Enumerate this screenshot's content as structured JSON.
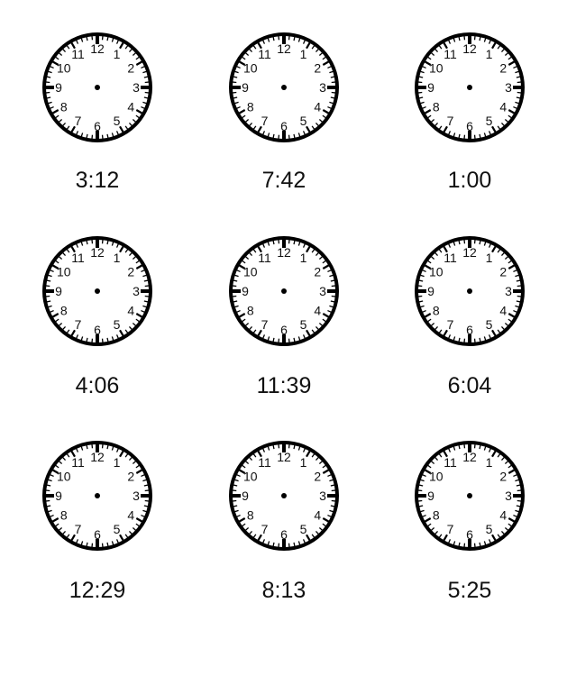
{
  "worksheet": {
    "clock_numbers": [
      "12",
      "1",
      "2",
      "3",
      "4",
      "5",
      "6",
      "7",
      "8",
      "9",
      "10",
      "11"
    ],
    "clocks": [
      {
        "time": "3:12"
      },
      {
        "time": "7:42"
      },
      {
        "time": "1:00"
      },
      {
        "time": "4:06"
      },
      {
        "time": "11:39"
      },
      {
        "time": "6:04"
      },
      {
        "time": "12:29"
      },
      {
        "time": "8:13"
      },
      {
        "time": "5:25"
      }
    ]
  }
}
